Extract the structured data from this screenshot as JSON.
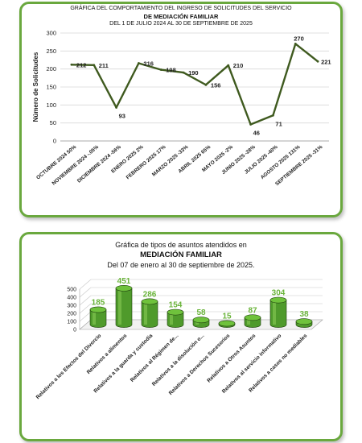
{
  "charts": {
    "line": {
      "title_line1": "GRÁFICA DEL COMPORTAMIENTO DEL  INGRESO DE SOLICITUDES DEL SERVICIO",
      "title_line2": "DE MEDIACIÓN FAMILIAR",
      "title_line3": "DEL  1  DE  JULIO  2024 AL  30 DE SEPTIEMBRE DE 2025"
    },
    "bar": {
      "title_line1": "Gráfica de tipos de asuntos atendidos en",
      "title_line2": "MEDIACIÓN FAMILIAR",
      "title_line3": "Del  07 de enero al  30 de septiembre de 2025."
    }
  },
  "chart_data": [
    {
      "type": "line",
      "title": "GRÁFICA DEL COMPORTAMIENTO DEL INGRESO DE SOLICITUDES DEL SERVICIO DE MEDIACIÓN FAMILIAR",
      "subtitle": "DEL 1 DE JULIO 2024 AL 30 DE SEPTIEMBRE DE 2025",
      "xlabel": "",
      "ylabel": "Número de Solicitudes",
      "ylim": [
        0,
        300
      ],
      "yticks": [
        0,
        50,
        100,
        150,
        200,
        250,
        300
      ],
      "grid": true,
      "legend": "none",
      "line_color": "#3f5a1f",
      "categories": [
        "OCTUBRE 2024  50%",
        "NOVIEMBRE 2024  -.05%",
        "DICIEMBRE 2024  -56%",
        "ENERO  2025  2%",
        "FEBRERO 2025  17%",
        "MARZO 2025  -33%",
        "ABRIL 2025  65%",
        "MAYO  2025  -2%",
        "JUNIO  2025  -28%",
        "JULIO  2025  -40%",
        "AGOSTO  2025  131%",
        "SEPTIEMBRE  2025  -31%"
      ],
      "values": [
        212,
        211,
        93,
        216,
        198,
        190,
        156,
        210,
        46,
        71,
        270,
        221
      ]
    },
    {
      "type": "bar",
      "title": "Gráfica de tipos de asuntos atendidos en MEDIACIÓN FAMILIAR",
      "subtitle": "Del 07 de enero al 30 de septiembre de 2025.",
      "xlabel": "",
      "ylabel": "",
      "ylim": [
        0,
        500
      ],
      "yticks": [
        0,
        100,
        200,
        300,
        400,
        500
      ],
      "grid": true,
      "legend": "none",
      "bar_color": "#4f9a2b",
      "label_color": "#6ab43a",
      "categories": [
        "Relativos a los Efectos del Divorcio",
        "Relativos a alimentos",
        "Relativos a la guarda y custodia",
        "Relativos al Régimen de...",
        "Relativos a la disolución o...",
        "Relativos a Derechos Sucesorios",
        "Relativos a Otros Asuntos",
        "Relativos al servicio informativo",
        "Relativos a casos no mediables"
      ],
      "values": [
        185,
        451,
        286,
        154,
        58,
        15,
        87,
        304,
        38
      ]
    }
  ]
}
